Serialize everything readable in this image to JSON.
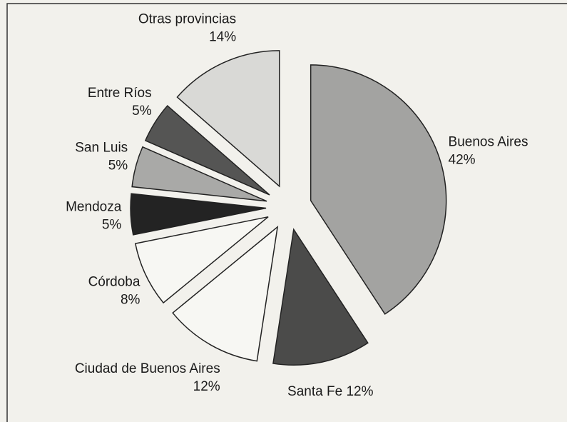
{
  "chart_data": {
    "type": "pie",
    "categories": [
      "Buenos Aires",
      "Santa Fe",
      "Ciudad de Buenos Aires",
      "Córdoba",
      "Mendoza",
      "San Luis",
      "Entre Ríos",
      "Otras provincias"
    ],
    "values": [
      42,
      12,
      12,
      8,
      5,
      5,
      5,
      14
    ],
    "value_labels": [
      "42%",
      "12%",
      "12%",
      "8%",
      "5%",
      "5%",
      "5%",
      "14%"
    ],
    "colors": [
      "#a3a3a1",
      "#4b4b4a",
      "#f7f7f3",
      "#f7f7f3",
      "#232323",
      "#a9a9a7",
      "#555554",
      "#d9d9d6"
    ]
  }
}
